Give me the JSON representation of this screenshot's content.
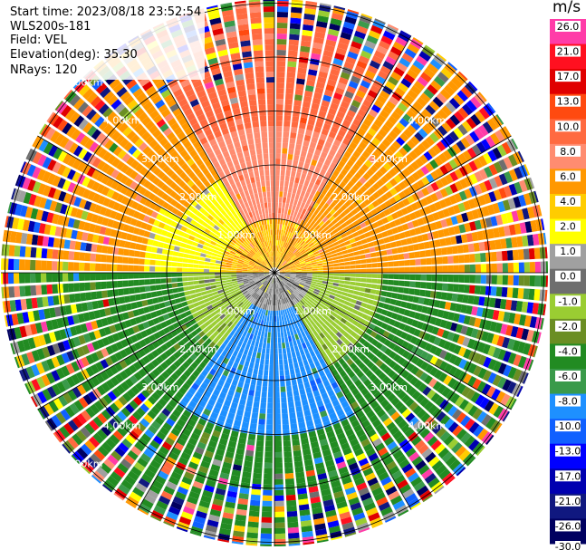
{
  "info": {
    "start_time": "Start time: 2023/08/18 23:52:54",
    "station": "WLS200s-181",
    "field": "Field: VEL",
    "elevation": "Elevation(deg): 35.30",
    "nrays": "NRays: 120"
  },
  "colorbar": {
    "unit": "m/s",
    "ticks": [
      "26.0",
      "21.0",
      "17.0",
      "13.0",
      "10.0",
      "8.0",
      "6.0",
      "4.0",
      "2.0",
      "1.0",
      "0.0",
      "-1.0",
      "-2.0",
      "-4.0",
      "-6.0",
      "-8.0",
      "-10.0",
      "-13.0",
      "-17.0",
      "-21.0",
      "-26.0",
      "-30.0"
    ],
    "colors": [
      "#ff3ca8",
      "#ff1020",
      "#e00000",
      "#ff4a10",
      "#ff6a40",
      "#ff8c70",
      "#ff9800",
      "#ffcc00",
      "#ffff00",
      "#a0a0a0",
      "#6e6e6e",
      "#9acd32",
      "#6b8e23",
      "#228b22",
      "#3a9a4a",
      "#1e90ff",
      "#1060ff",
      "#0000ff",
      "#0000b0",
      "#101880",
      "#000060"
    ]
  },
  "range_rings": {
    "labels": [
      "1.00km",
      "2.00km",
      "3.00km",
      "4.00km",
      "5.00km"
    ]
  }
}
